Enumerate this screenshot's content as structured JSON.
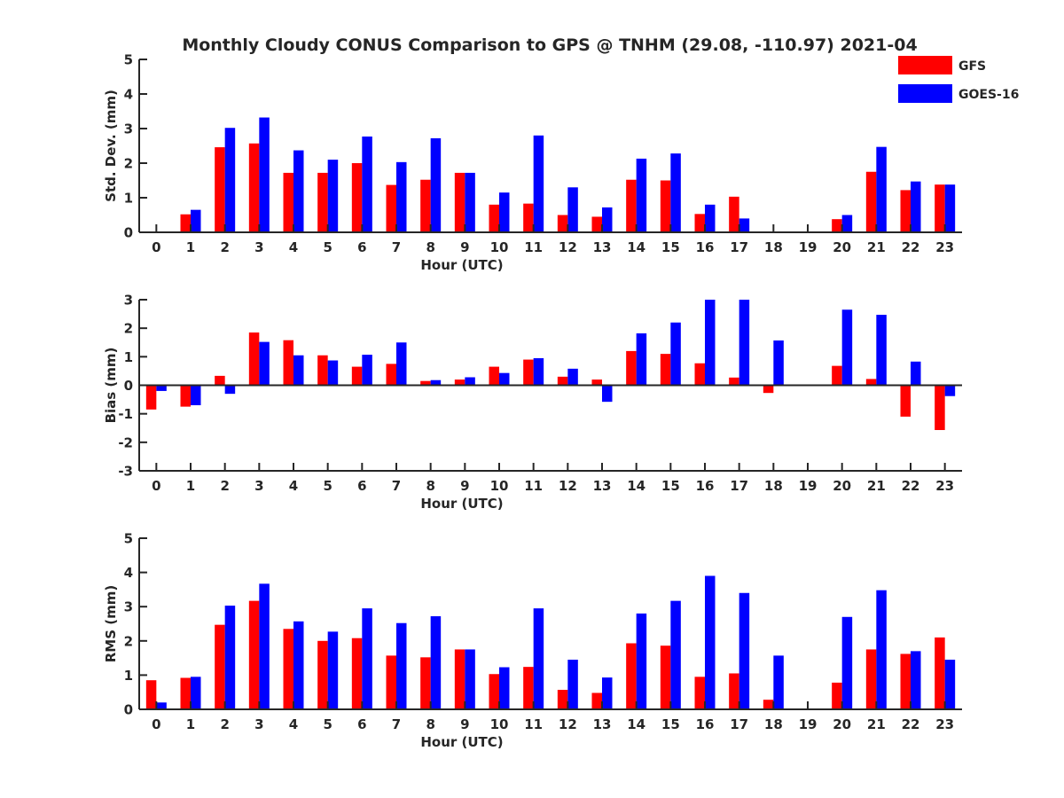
{
  "title": "Monthly Cloudy CONUS Comparison to GPS @ TNHM (29.08, -110.97) 2021-04",
  "legend": [
    {
      "name": "GFS",
      "color": "#ff0000"
    },
    {
      "name": "GOES-16",
      "color": "#0000ff"
    }
  ],
  "chart_data": [
    {
      "type": "bar",
      "xlabel": "Hour (UTC)",
      "ylabel": "Std. Dev. (mm)",
      "ylim": [
        0,
        5
      ],
      "yticks": [
        0,
        1,
        2,
        3,
        4,
        5
      ],
      "categories": [
        "0",
        "1",
        "2",
        "3",
        "4",
        "5",
        "6",
        "7",
        "8",
        "9",
        "10",
        "11",
        "12",
        "13",
        "14",
        "15",
        "16",
        "17",
        "18",
        "19",
        "20",
        "21",
        "22",
        "23"
      ],
      "series": [
        {
          "name": "GFS",
          "color": "#ff0000",
          "values": [
            0,
            0.52,
            2.46,
            2.57,
            1.72,
            1.72,
            2.0,
            1.37,
            1.52,
            1.72,
            0.8,
            0.83,
            0.5,
            0.45,
            1.52,
            1.5,
            0.53,
            1.03,
            null,
            null,
            0.38,
            1.75,
            1.22,
            1.38
          ]
        },
        {
          "name": "GOES-16",
          "color": "#0000ff",
          "values": [
            0,
            0.65,
            3.02,
            3.32,
            2.37,
            2.1,
            2.77,
            2.03,
            2.72,
            1.72,
            1.15,
            2.8,
            1.3,
            0.72,
            2.13,
            2.28,
            0.8,
            0.4,
            null,
            null,
            0.5,
            2.47,
            1.47,
            1.38
          ]
        }
      ]
    },
    {
      "type": "bar",
      "xlabel": "Hour (UTC)",
      "ylabel": "Bias (mm)",
      "ylim": [
        -3,
        3
      ],
      "yticks": [
        -3,
        -2,
        -1,
        0,
        1,
        2,
        3
      ],
      "categories": [
        "0",
        "1",
        "2",
        "3",
        "4",
        "5",
        "6",
        "7",
        "8",
        "9",
        "10",
        "11",
        "12",
        "13",
        "14",
        "15",
        "16",
        "17",
        "18",
        "19",
        "20",
        "21",
        "22",
        "23"
      ],
      "series": [
        {
          "name": "GFS",
          "color": "#ff0000",
          "values": [
            -0.85,
            -0.75,
            0.33,
            1.85,
            1.58,
            1.05,
            0.65,
            0.75,
            0.15,
            0.2,
            0.65,
            0.9,
            0.3,
            0.2,
            1.2,
            1.1,
            0.77,
            0.27,
            -0.27,
            null,
            0.68,
            0.22,
            -1.1,
            -1.57
          ]
        },
        {
          "name": "GOES-16",
          "color": "#0000ff",
          "values": [
            -0.2,
            -0.7,
            -0.3,
            1.52,
            1.05,
            0.87,
            1.07,
            1.5,
            0.18,
            0.28,
            0.43,
            0.95,
            0.58,
            -0.58,
            1.82,
            2.2,
            3.0,
            3.0,
            1.57,
            null,
            2.65,
            2.47,
            0.83,
            -0.38
          ]
        }
      ]
    },
    {
      "type": "bar",
      "xlabel": "Hour (UTC)",
      "ylabel": "RMS (mm)",
      "ylim": [
        0,
        5
      ],
      "yticks": [
        0,
        1,
        2,
        3,
        4,
        5
      ],
      "categories": [
        "0",
        "1",
        "2",
        "3",
        "4",
        "5",
        "6",
        "7",
        "8",
        "9",
        "10",
        "11",
        "12",
        "13",
        "14",
        "15",
        "16",
        "17",
        "18",
        "19",
        "20",
        "21",
        "22",
        "23"
      ],
      "series": [
        {
          "name": "GFS",
          "color": "#ff0000",
          "values": [
            0.85,
            0.92,
            2.47,
            3.17,
            2.35,
            2.0,
            2.08,
            1.57,
            1.52,
            1.75,
            1.03,
            1.24,
            0.57,
            0.48,
            1.93,
            1.86,
            0.95,
            1.05,
            0.28,
            null,
            0.78,
            1.75,
            1.62,
            2.1
          ]
        },
        {
          "name": "GOES-16",
          "color": "#0000ff",
          "values": [
            0.2,
            0.95,
            3.03,
            3.67,
            2.57,
            2.27,
            2.95,
            2.52,
            2.72,
            1.75,
            1.23,
            2.95,
            1.45,
            0.93,
            2.8,
            3.17,
            3.9,
            3.4,
            1.57,
            null,
            2.7,
            3.48,
            1.7,
            1.45
          ]
        }
      ]
    }
  ]
}
